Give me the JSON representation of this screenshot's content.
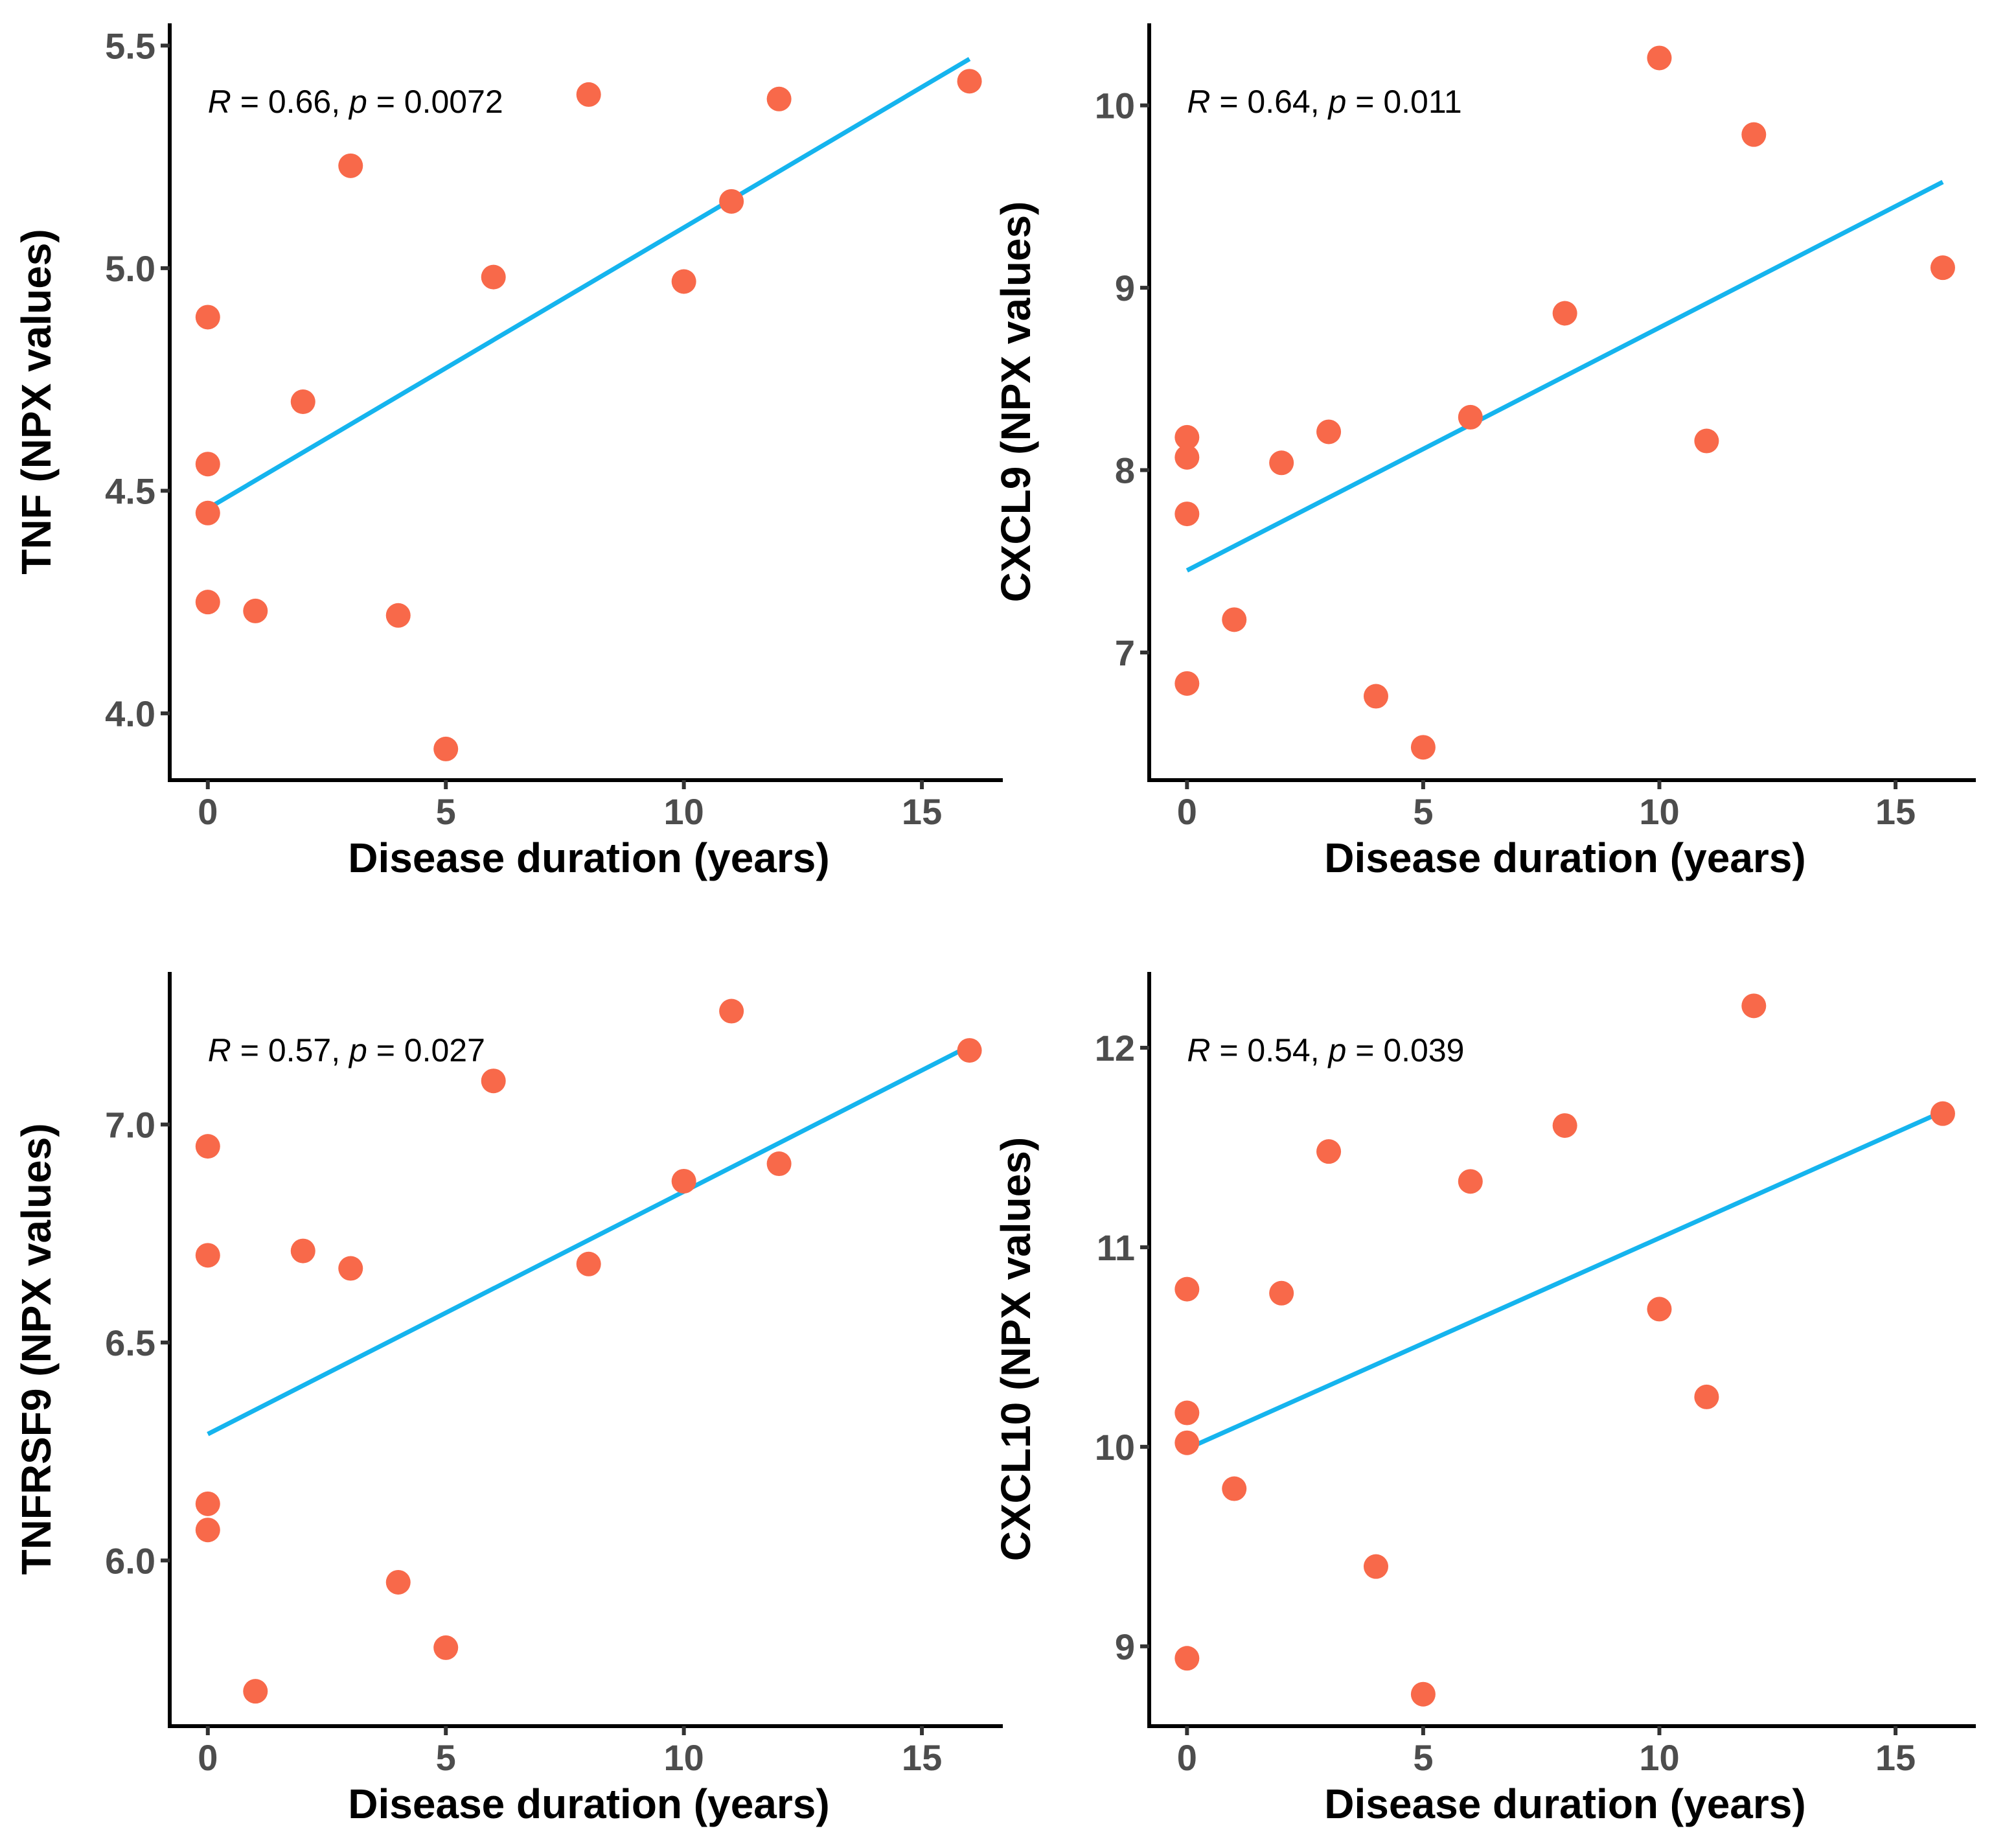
{
  "colors": {
    "point": "#F8694A",
    "fit_line": "#15B4EE",
    "axis": "#000000",
    "tick_text": "#4d4d4d"
  },
  "chart_data": [
    {
      "type": "scatter",
      "panel": "top-left",
      "xlabel": "Disease duration (years)",
      "ylabel": "TNF (NPX values)",
      "annotation": {
        "R": "R",
        "r_value": " = 0.66, ",
        "p": "p",
        "p_value": " = 0.0072"
      },
      "xlim": [
        -0.8,
        16.7
      ],
      "ylim": [
        3.85,
        5.55
      ],
      "xticks": [
        0,
        5,
        10,
        15
      ],
      "yticks": [
        4.0,
        4.5,
        5.0,
        5.5
      ],
      "ytick_labels": [
        "4.0",
        "4.5",
        "5.0",
        "5.5"
      ],
      "x": [
        0,
        0,
        0,
        0,
        1,
        2,
        3,
        4,
        5,
        6,
        8,
        10,
        11,
        12,
        16
      ],
      "y": [
        4.89,
        4.56,
        4.45,
        4.25,
        4.23,
        4.7,
        5.23,
        4.22,
        3.92,
        4.98,
        5.39,
        4.97,
        5.15,
        5.38,
        5.42
      ],
      "fit": {
        "x": [
          0,
          16
        ],
        "y": [
          4.46,
          5.47
        ]
      }
    },
    {
      "type": "scatter",
      "panel": "top-right",
      "xlabel": "Disease duration (years)",
      "ylabel": "CXCL9 (NPX values)",
      "annotation": {
        "R": "R",
        "r_value": " = 0.64, ",
        "p": "p",
        "p_value": " = 0.011"
      },
      "xlim": [
        -0.8,
        16.7
      ],
      "ylim": [
        6.3,
        10.45
      ],
      "xticks": [
        0,
        5,
        10,
        15
      ],
      "yticks": [
        7,
        8,
        9,
        10
      ],
      "ytick_labels": [
        "7",
        "8",
        "9",
        "10"
      ],
      "x": [
        0,
        0,
        0,
        0,
        1,
        2,
        3,
        4,
        5,
        6,
        8,
        10,
        11,
        12,
        16
      ],
      "y": [
        8.18,
        8.07,
        7.76,
        6.83,
        7.18,
        8.04,
        8.21,
        6.76,
        6.48,
        8.29,
        8.86,
        10.26,
        8.16,
        9.84,
        9.11
      ],
      "fit": {
        "x": [
          0,
          16
        ],
        "y": [
          7.45,
          9.58
        ]
      }
    },
    {
      "type": "scatter",
      "panel": "bottom-left",
      "xlabel": "Disease duration (years)",
      "ylabel": "TNFRSF9 (NPX values)",
      "annotation": {
        "R": "R",
        "r_value": " = 0.57, ",
        "p": "p",
        "p_value": " = 0.027"
      },
      "xlim": [
        -0.8,
        16.7
      ],
      "ylim": [
        5.62,
        7.35
      ],
      "xticks": [
        0,
        5,
        10,
        15
      ],
      "yticks": [
        6.0,
        6.5,
        7.0
      ],
      "ytick_labels": [
        "6.0",
        "6.5",
        "7.0"
      ],
      "x": [
        0,
        0,
        0,
        0,
        1,
        2,
        3,
        4,
        5,
        6,
        8,
        10,
        11,
        12,
        16
      ],
      "y": [
        6.95,
        6.7,
        6.13,
        6.07,
        5.7,
        6.71,
        6.67,
        5.95,
        5.8,
        7.1,
        6.68,
        6.87,
        7.26,
        6.91,
        7.17
      ],
      "fit": {
        "x": [
          0,
          16
        ],
        "y": [
          6.29,
          7.18
        ]
      }
    },
    {
      "type": "scatter",
      "panel": "bottom-right",
      "xlabel": "Disease duration (years)",
      "ylabel": "CXCL10 (NPX values)",
      "annotation": {
        "R": "R",
        "r_value": " = 0.54, ",
        "p": "p",
        "p_value": " = 0.039"
      },
      "xlim": [
        -0.8,
        16.7
      ],
      "ylim": [
        8.6,
        12.38
      ],
      "xticks": [
        0,
        5,
        10,
        15
      ],
      "yticks": [
        9,
        10,
        11,
        12
      ],
      "ytick_labels": [
        "9",
        "10",
        "11",
        "12"
      ],
      "x": [
        0,
        0,
        0,
        0,
        1,
        2,
        3,
        4,
        5,
        6,
        8,
        10,
        11,
        12,
        16
      ],
      "y": [
        10.79,
        10.17,
        10.02,
        8.94,
        9.79,
        10.77,
        11.48,
        9.4,
        8.76,
        11.33,
        11.61,
        10.69,
        10.25,
        12.21,
        11.67
      ],
      "fit": {
        "x": [
          0,
          16
        ],
        "y": [
          9.99,
          11.68
        ]
      }
    }
  ]
}
